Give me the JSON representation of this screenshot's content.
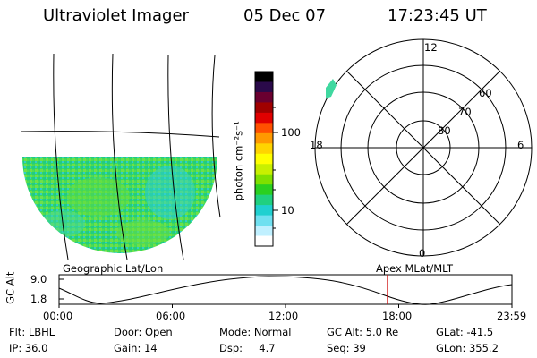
{
  "header": {
    "instrument": "Ultraviolet Imager",
    "date": "05 Dec 07",
    "time": "17:23:45 UT"
  },
  "colorbar": {
    "unit_label": "photon cm⁻²s⁻¹",
    "ticks": [
      "100",
      "10"
    ],
    "colors": [
      "#000000",
      "#2a0a4a",
      "#6a0030",
      "#a00000",
      "#e00000",
      "#ff5000",
      "#ff9900",
      "#ffd400",
      "#ffff00",
      "#c8f000",
      "#7fe000",
      "#2ad020",
      "#20d080",
      "#20d0d0",
      "#70e0f0",
      "#c0f0ff",
      "#ffffff"
    ]
  },
  "polar": {
    "mlt_labels": {
      "top": "12",
      "left": "18",
      "right": "6",
      "bottom": "0"
    },
    "lat_labels": [
      "60",
      "70",
      "80"
    ]
  },
  "labels": {
    "geo": "Geographic Lat/Lon",
    "apex": "Apex MLat/MLT"
  },
  "alt_plot": {
    "ylabel": "GC Alt",
    "yticks": [
      "9.0",
      "1.8"
    ],
    "xticks": [
      "00:00",
      "06:00",
      "12:00",
      "18:00",
      "23:59"
    ],
    "marker_time_hours": 17.4,
    "marker_color": "#cc0000"
  },
  "info": [
    [
      "Flt: LBHL",
      "Door: Open",
      "Mode: Normal",
      "GC Alt: 5.0 Re",
      "GLat: -41.5"
    ],
    [
      "IP: 36.0",
      "Gain: 14",
      "Dsp:     4.7",
      "Seq: 39",
      "GLon: 355.2"
    ]
  ]
}
